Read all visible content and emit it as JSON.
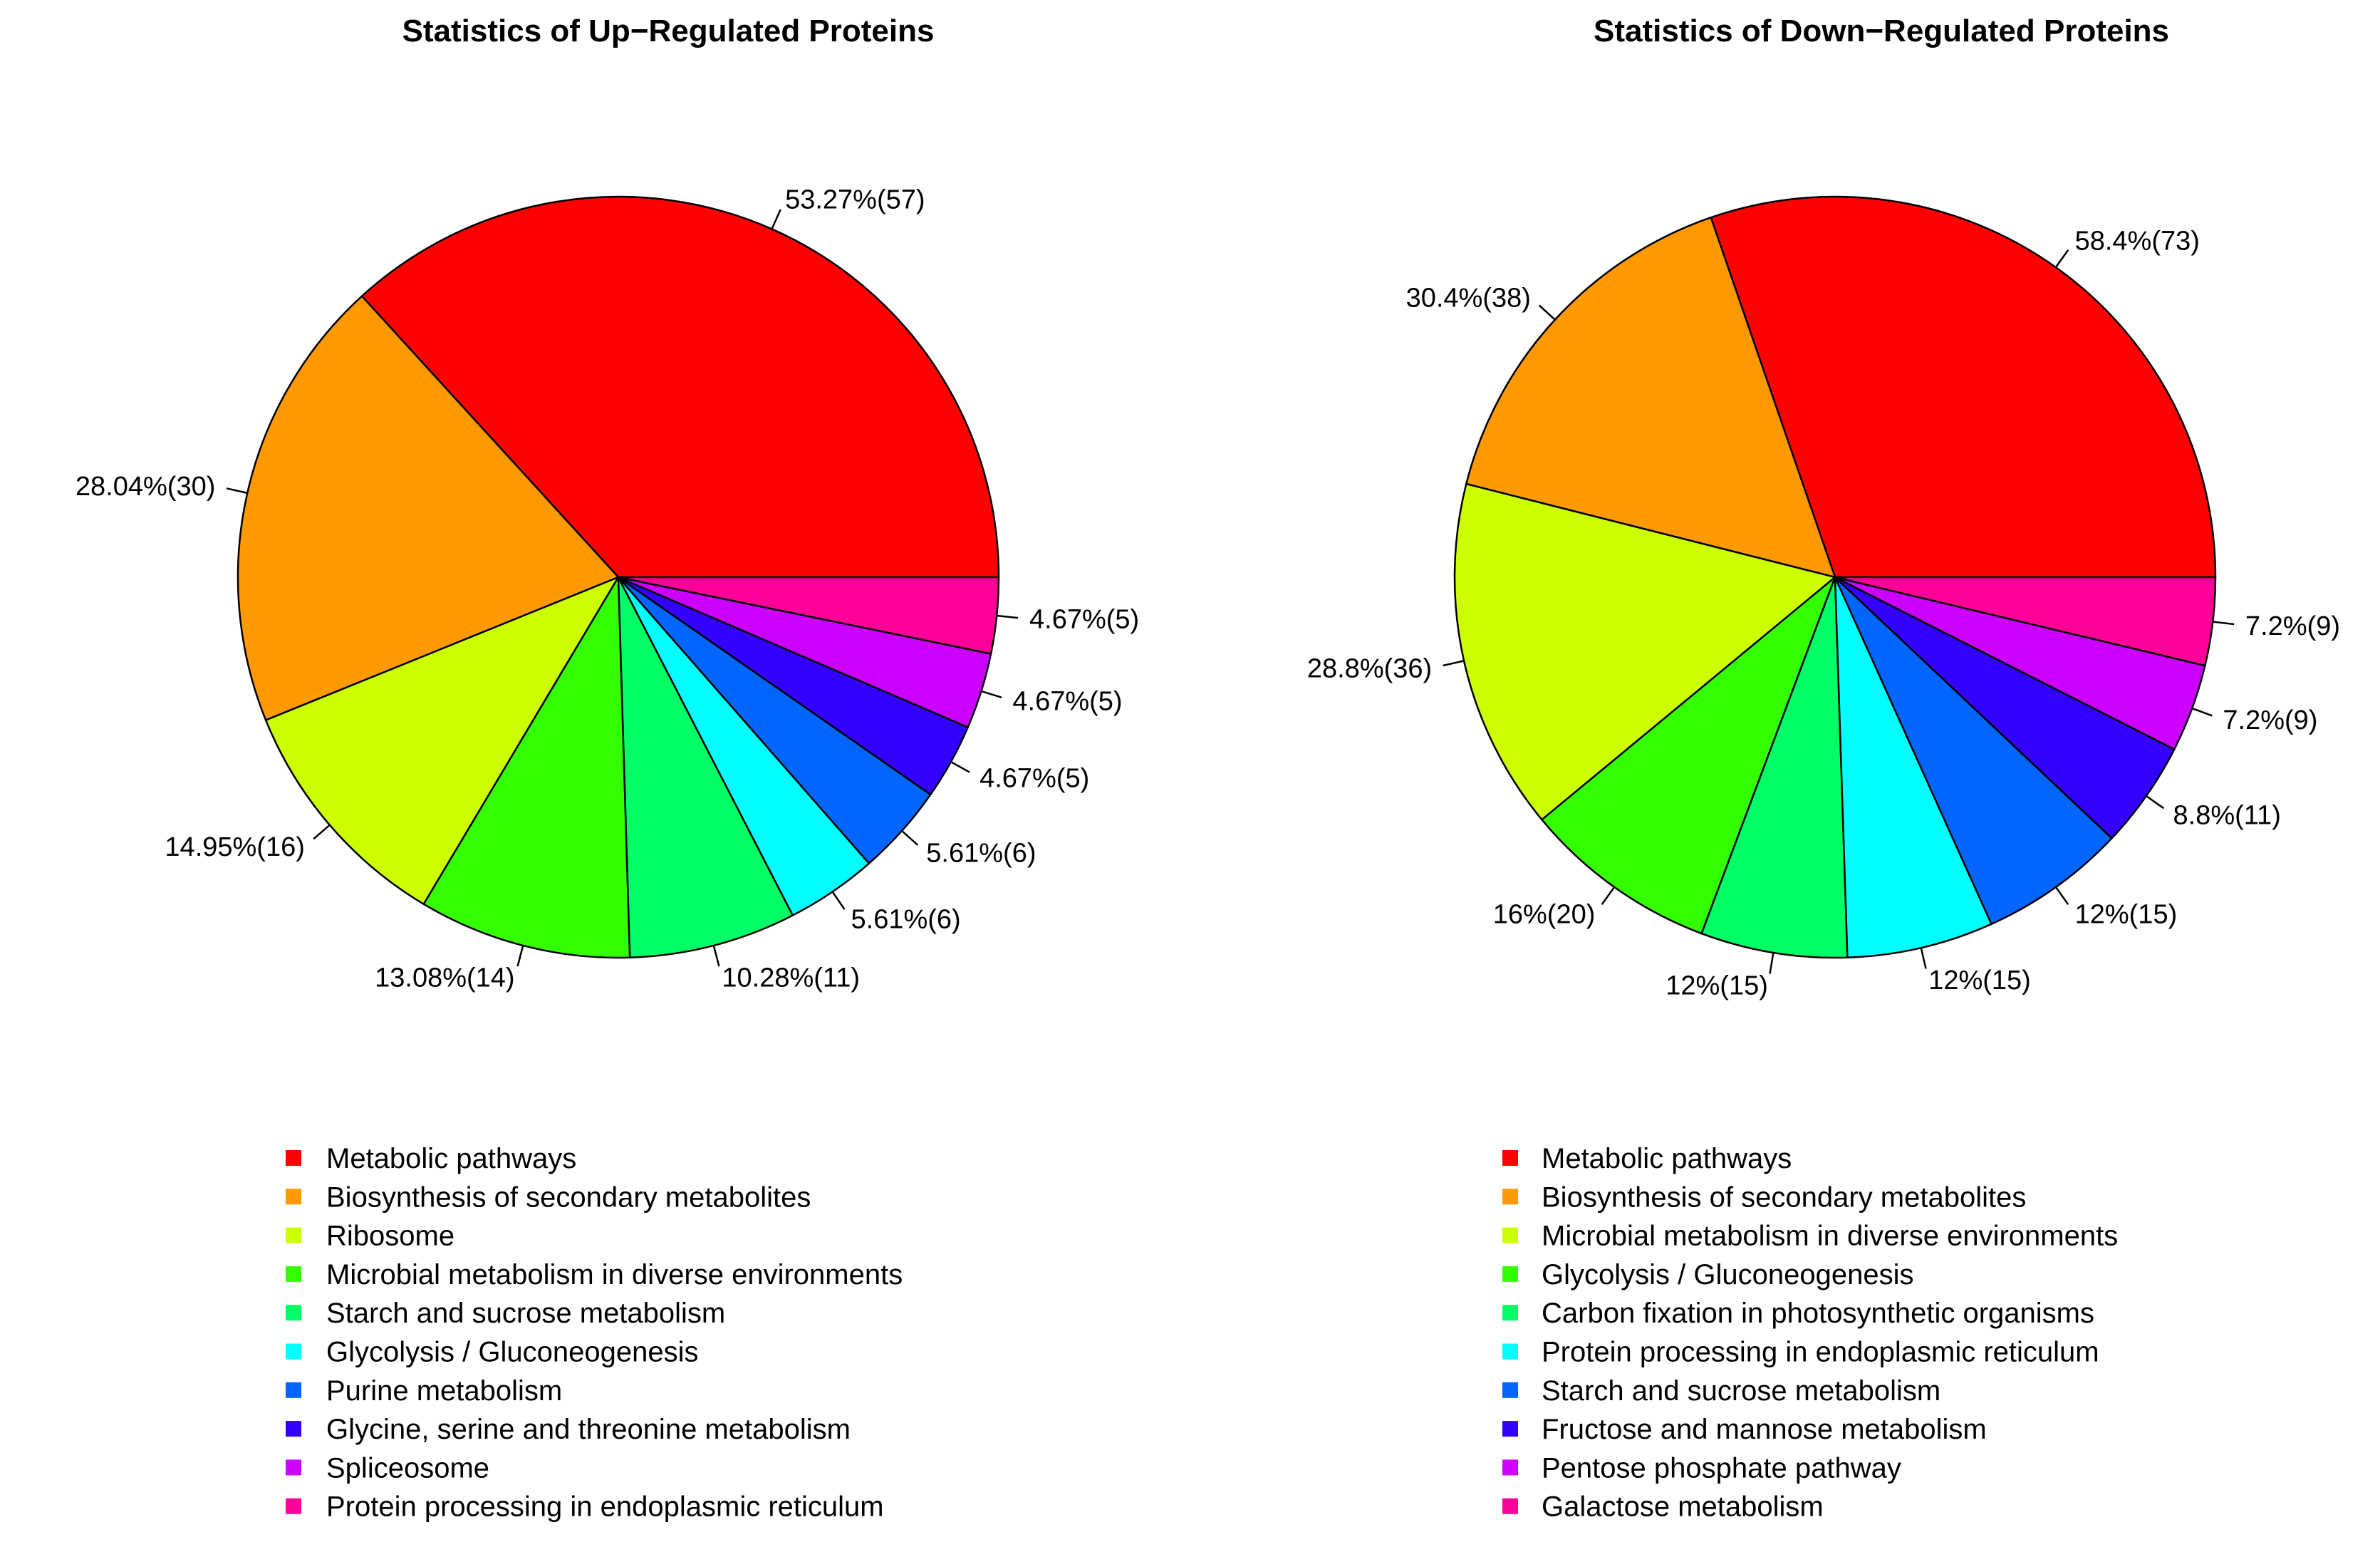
{
  "chart_data": [
    {
      "type": "pie",
      "title": "Statistics of Up−Regulated Proteins",
      "start": "3 o'clock, counterclockwise",
      "slices": [
        {
          "category": "Metabolic pathways",
          "value": 57,
          "label": "53.27%(57)",
          "color": "#FF0000"
        },
        {
          "category": "Biosynthesis of secondary metabolites",
          "value": 30,
          "label": "28.04%(30)",
          "color": "#FF9900"
        },
        {
          "category": "Ribosome",
          "value": 16,
          "label": "14.95%(16)",
          "color": "#CCFF00"
        },
        {
          "category": "Microbial metabolism in diverse environments",
          "value": 14,
          "label": "13.08%(14)",
          "color": "#33FF00"
        },
        {
          "category": "Starch and sucrose metabolism",
          "value": 11,
          "label": "10.28%(11)",
          "color": "#00FF66"
        },
        {
          "category": "Glycolysis / Gluconeogenesis",
          "value": 6,
          "label": "5.61%(6)",
          "color": "#00FFFF"
        },
        {
          "category": "Purine metabolism",
          "value": 6,
          "label": "5.61%(6)",
          "color": "#0066FF"
        },
        {
          "category": "Glycine, serine and threonine metabolism",
          "value": 5,
          "label": "4.67%(5)",
          "color": "#3300FF"
        },
        {
          "category": "Spliceosome",
          "value": 5,
          "label": "4.67%(5)",
          "color": "#CC00FF"
        },
        {
          "category": "Protein processing in endoplasmic reticulum",
          "value": 5,
          "label": "4.67%(5)",
          "color": "#FF0099"
        }
      ]
    },
    {
      "type": "pie",
      "title": "Statistics of Down−Regulated Proteins",
      "start": "3 o'clock, counterclockwise",
      "slices": [
        {
          "category": "Metabolic pathways",
          "value": 73,
          "label": "58.4%(73)",
          "color": "#FF0000"
        },
        {
          "category": "Biosynthesis of secondary metabolites",
          "value": 38,
          "label": "30.4%(38)",
          "color": "#FF9900"
        },
        {
          "category": "Microbial metabolism in diverse environments",
          "value": 36,
          "label": "28.8%(36)",
          "color": "#CCFF00"
        },
        {
          "category": "Glycolysis / Gluconeogenesis",
          "value": 20,
          "label": "16%(20)",
          "color": "#33FF00"
        },
        {
          "category": "Carbon fixation in photosynthetic organisms",
          "value": 15,
          "label": "12%(15)",
          "color": "#00FF66"
        },
        {
          "category": "Protein processing in endoplasmic reticulum",
          "value": 15,
          "label": "12%(15)",
          "color": "#00FFFF"
        },
        {
          "category": "Starch and sucrose metabolism",
          "value": 15,
          "label": "12%(15)",
          "color": "#0066FF"
        },
        {
          "category": "Fructose and mannose metabolism",
          "value": 11,
          "label": "8.8%(11)",
          "color": "#3300FF"
        },
        {
          "category": "Pentose phosphate pathway",
          "value": 9,
          "label": "7.2%(9)",
          "color": "#CC00FF"
        },
        {
          "category": "Galactose metabolism",
          "value": 9,
          "label": "7.2%(9)",
          "color": "#FF0099"
        }
      ]
    }
  ]
}
